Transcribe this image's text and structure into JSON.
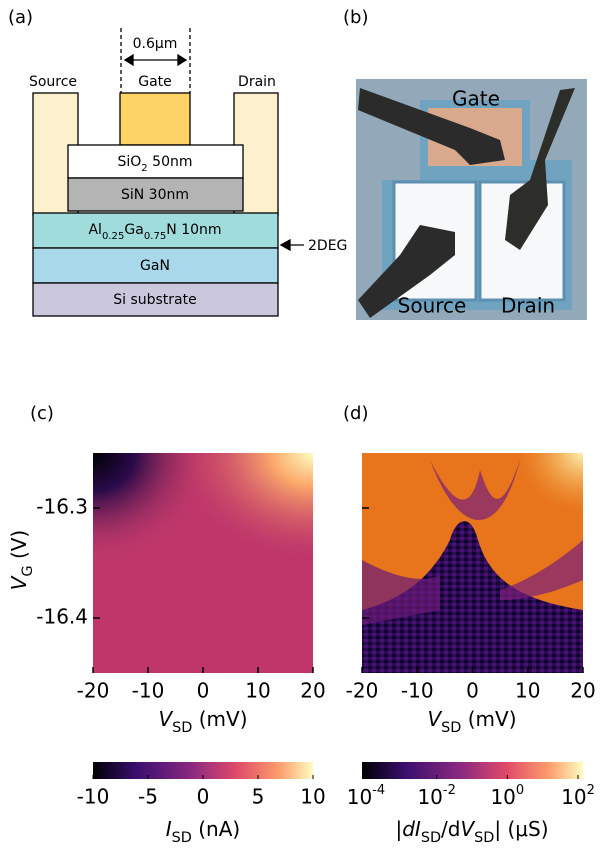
{
  "panel_labels": [
    "(a)",
    "(b)",
    "(c)",
    "(d)"
  ],
  "device": {
    "width_label": "0.6μm",
    "source": "Source",
    "gate": "Gate",
    "drain": "Drain",
    "layers": [
      [
        {
          "t": "SiO"
        },
        {
          "t": "2",
          "sub": true
        },
        {
          "t": " 50nm"
        }
      ],
      [
        {
          "t": "SiN 30nm"
        }
      ],
      [
        {
          "t": "Al"
        },
        {
          "t": "0.25",
          "sub": true
        },
        {
          "t": "Ga"
        },
        {
          "t": "0.75",
          "sub": true
        },
        {
          "t": "N 10nm"
        }
      ],
      [
        {
          "t": "GaN"
        }
      ],
      [
        {
          "t": "Si substrate"
        }
      ]
    ],
    "channel_label": "2DEG"
  },
  "photo": {
    "gate": "Gate",
    "source": "Source",
    "drain": "Drain"
  },
  "maps": {
    "xlim": [
      -20,
      20
    ],
    "xticks": [
      -20,
      -10,
      0,
      10,
      20
    ],
    "ylim": [
      -16.45,
      -16.25
    ],
    "yticks": [
      -16.3,
      -16.4
    ],
    "xlabel": [
      {
        "t": "V",
        "i": true
      },
      {
        "t": "SD",
        "sub": true
      },
      {
        "t": " (mV)"
      }
    ],
    "ylabel": [
      {
        "t": "V",
        "i": true
      },
      {
        "t": "G",
        "sub": true
      },
      {
        "t": " (V)"
      }
    ],
    "current_bar": {
      "lim": [
        -10,
        10
      ],
      "ticks": [
        -10,
        -5,
        0,
        5,
        10
      ],
      "label": [
        {
          "t": "I",
          "i": true
        },
        {
          "t": "SD",
          "sub": true
        },
        {
          "t": " (nA)"
        }
      ]
    },
    "conductance_bar": {
      "lim": [
        0.0001,
        100
      ],
      "log": true,
      "ticks": [
        {
          "value": 0.0001,
          "base": "10",
          "exp": "-4"
        },
        {
          "value": 0.01,
          "base": "10",
          "exp": "-2"
        },
        {
          "value": 1,
          "base": "10",
          "exp": "0"
        },
        {
          "value": 100,
          "base": "10",
          "exp": "2"
        }
      ],
      "label": [
        {
          "t": "|"
        },
        {
          "t": "dI",
          "i": true
        },
        {
          "t": "SD",
          "sub": true
        },
        {
          "t": "/d"
        },
        {
          "t": "V",
          "i": true
        },
        {
          "t": "SD",
          "sub": true
        },
        {
          "t": "| (μS)"
        }
      ]
    }
  }
}
